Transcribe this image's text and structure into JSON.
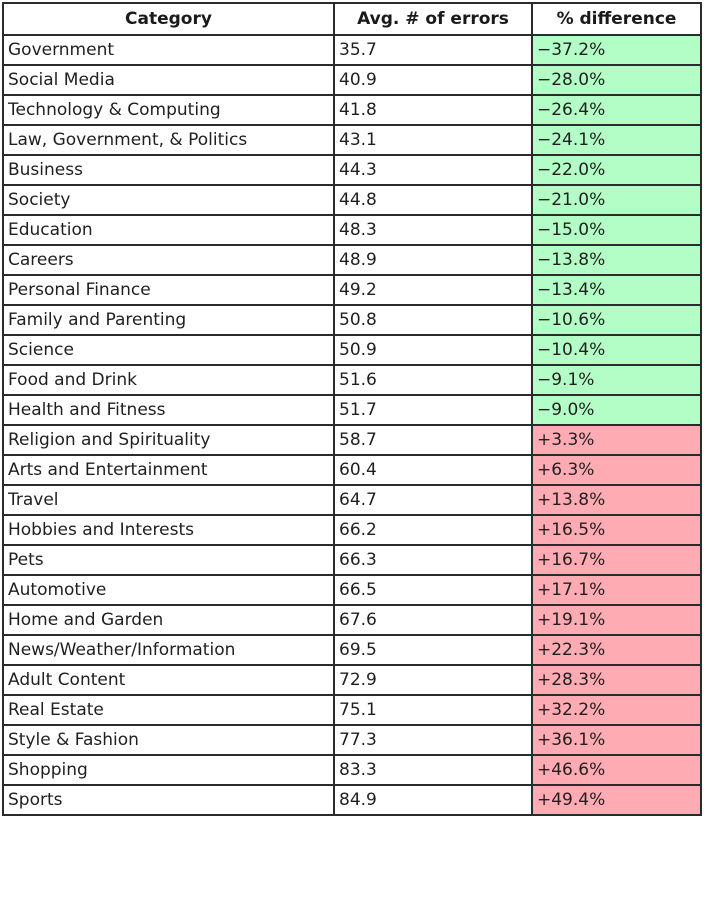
{
  "chart_data": {
    "type": "table",
    "columns": [
      "Category",
      "Avg. # of errors",
      "% difference"
    ],
    "rows": [
      {
        "category": "Government",
        "avg": "35.7",
        "diff": "−37.2%",
        "sign": "neg"
      },
      {
        "category": "Social Media",
        "avg": "40.9",
        "diff": "−28.0%",
        "sign": "neg"
      },
      {
        "category": "Technology & Computing",
        "avg": "41.8",
        "diff": "−26.4%",
        "sign": "neg"
      },
      {
        "category": "Law, Government, & Politics",
        "avg": "43.1",
        "diff": "−24.1%",
        "sign": "neg"
      },
      {
        "category": "Business",
        "avg": "44.3",
        "diff": "−22.0%",
        "sign": "neg"
      },
      {
        "category": "Society",
        "avg": "44.8",
        "diff": "−21.0%",
        "sign": "neg"
      },
      {
        "category": "Education",
        "avg": "48.3",
        "diff": "−15.0%",
        "sign": "neg"
      },
      {
        "category": "Careers",
        "avg": "48.9",
        "diff": "−13.8%",
        "sign": "neg"
      },
      {
        "category": "Personal Finance",
        "avg": "49.2",
        "diff": "−13.4%",
        "sign": "neg"
      },
      {
        "category": "Family and Parenting",
        "avg": "50.8",
        "diff": "−10.6%",
        "sign": "neg"
      },
      {
        "category": "Science",
        "avg": "50.9",
        "diff": "−10.4%",
        "sign": "neg"
      },
      {
        "category": "Food and Drink",
        "avg": "51.6",
        "diff": "−9.1%",
        "sign": "neg"
      },
      {
        "category": "Health and Fitness",
        "avg": "51.7",
        "diff": "−9.0%",
        "sign": "neg"
      },
      {
        "category": "Religion and Spirituality",
        "avg": "58.7",
        "diff": "+3.3%",
        "sign": "pos"
      },
      {
        "category": "Arts and Entertainment",
        "avg": "60.4",
        "diff": "+6.3%",
        "sign": "pos"
      },
      {
        "category": "Travel",
        "avg": "64.7",
        "diff": "+13.8%",
        "sign": "pos"
      },
      {
        "category": "Hobbies and Interests",
        "avg": "66.2",
        "diff": "+16.5%",
        "sign": "pos"
      },
      {
        "category": "Pets",
        "avg": "66.3",
        "diff": "+16.7%",
        "sign": "pos"
      },
      {
        "category": "Automotive",
        "avg": "66.5",
        "diff": "+17.1%",
        "sign": "pos"
      },
      {
        "category": "Home and Garden",
        "avg": "67.6",
        "diff": "+19.1%",
        "sign": "pos"
      },
      {
        "category": "News/Weather/Information",
        "avg": "69.5",
        "diff": "+22.3%",
        "sign": "pos"
      },
      {
        "category": "Adult Content",
        "avg": "72.9",
        "diff": "+28.3%",
        "sign": "pos"
      },
      {
        "category": "Real Estate",
        "avg": "75.1",
        "diff": "+32.2%",
        "sign": "pos"
      },
      {
        "category": "Style & Fashion",
        "avg": "77.3",
        "diff": "+36.1%",
        "sign": "pos"
      },
      {
        "category": "Shopping",
        "avg": "83.3",
        "diff": "+46.6%",
        "sign": "pos"
      },
      {
        "category": "Sports",
        "avg": "84.9",
        "diff": "+49.4%",
        "sign": "pos"
      }
    ],
    "colors": {
      "negative_fill": "#b3fec6",
      "positive_fill": "#ffabb4",
      "border": "#2b2b2b"
    }
  }
}
